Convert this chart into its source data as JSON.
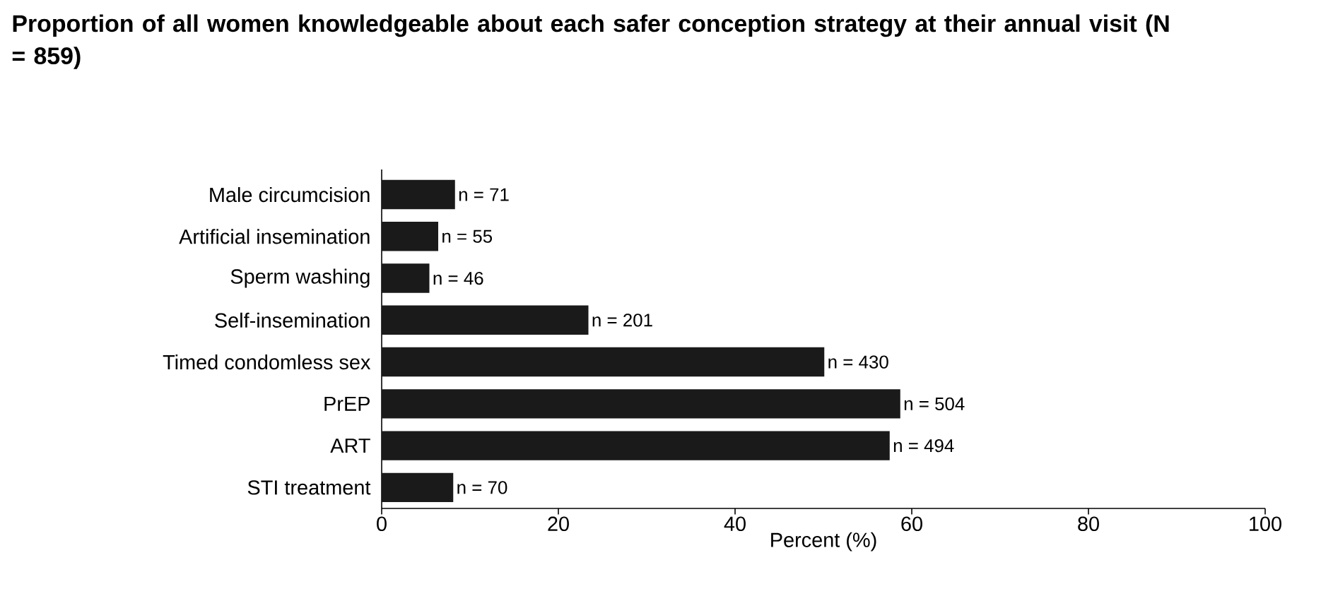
{
  "chart_data": {
    "type": "bar",
    "orientation": "horizontal",
    "title": "Proportion of all women knowledgeable about each safer conception strategy at their annual visit (N = 859)",
    "categories": [
      "Male circumcision",
      "Artificial insemination",
      "Sperm washing",
      "Self-insemination",
      "Timed condomless sex",
      "PrEP",
      "ART",
      "STI treatment"
    ],
    "values": [
      8.3,
      6.4,
      5.4,
      23.4,
      50.1,
      58.7,
      57.5,
      8.1
    ],
    "annotations": [
      {
        "text": "n = 71",
        "x": 8.3,
        "y": "Male circumcision"
      },
      {
        "text": "n = 55",
        "x": 6.4,
        "y": "Artificial insemination"
      },
      {
        "text": "n = 46",
        "x": 5.4,
        "y": "Sperm washing"
      },
      {
        "text": "n = 201",
        "x": 23.4,
        "y": "Self-insemination"
      },
      {
        "text": "n = 430",
        "x": 50.1,
        "y": "Timed condomless sex"
      },
      {
        "text": "n = 504",
        "x": 58.7,
        "y": "PrEP"
      },
      {
        "text": "n = 494",
        "x": 57.5,
        "y": "ART"
      },
      {
        "text": "n = 70",
        "x": 8.1,
        "y": "STI treatment"
      }
    ],
    "color": "#1a1a1a",
    "xlabel": "Percent (%)",
    "xlim": [
      0,
      100
    ],
    "xticks": [
      0,
      20,
      40,
      60,
      80,
      100
    ]
  }
}
